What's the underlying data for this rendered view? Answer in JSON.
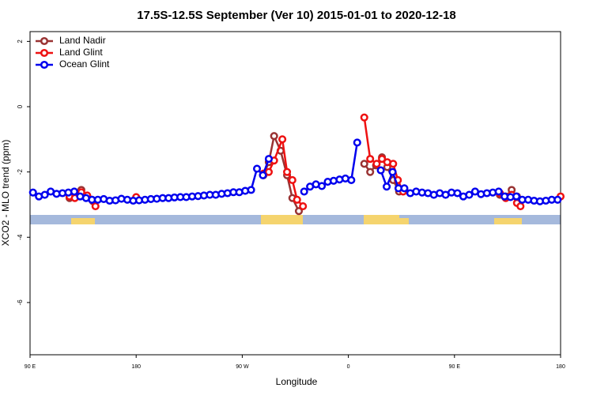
{
  "chart_data": {
    "type": "line",
    "title": "17.5S-12.5S September (Ver 10)   2015-01-01 to 2020-12-18",
    "x_label": "Longitude",
    "y_label": "XCO2 - MLO trend (ppm)",
    "xlim": [
      90,
      540
    ],
    "xticks": [
      {
        "value": 90,
        "label": "90 E"
      },
      {
        "value": 180,
        "label": "180"
      },
      {
        "value": 270,
        "label": "90 W"
      },
      {
        "value": 360,
        "label": "0"
      },
      {
        "value": 450,
        "label": "90 E"
      },
      {
        "value": 540,
        "label": "180"
      }
    ],
    "ylim": [
      -7.6,
      2.3
    ],
    "yticks": [
      2,
      0,
      -2,
      -4,
      -6
    ],
    "legend": "top-left",
    "series": [
      {
        "name": "Land Nadir",
        "color": "#993333",
        "x": [
          123.5,
          128,
          133.5,
          138.5,
          143.5,
          200,
          288,
          292.5,
          297,
          302.5,
          308,
          312.5,
          318,
          340,
          373.5,
          378.5,
          383.5,
          388.5,
          393,
          398,
          403,
          407.5,
          450,
          488.5,
          493.5,
          498.5,
          503
        ],
        "values": [
          -2.8,
          -2.75,
          -2.55,
          -2.75,
          -2.9,
          null,
          -2.1,
          -1.7,
          -0.9,
          -1.35,
          -2.1,
          -2.8,
          -3.2,
          null,
          -1.75,
          -2.0,
          -1.8,
          -1.55,
          -1.85,
          -2.25,
          -2.6,
          -2.55,
          null,
          -2.7,
          -2.75,
          -2.55,
          -2.75
        ]
      },
      {
        "name": "Land Glint",
        "color": "#ee1111",
        "x": [
          123.5,
          128,
          133.5,
          138.5,
          142.5,
          145.5,
          160,
          180,
          200,
          288,
          292.5,
          297,
          304,
          308,
          312.5,
          316.5,
          321.5,
          340,
          373.5,
          378.5,
          384,
          388.5,
          393,
          398,
          402,
          406.5,
          450,
          488.5,
          493.5,
          498.5,
          503,
          506,
          520,
          540
        ],
        "values": [
          -2.75,
          -2.8,
          -2.62,
          -2.72,
          -2.85,
          -3.05,
          null,
          -2.77,
          null,
          -2.05,
          -2.0,
          -1.65,
          -1.0,
          -2.0,
          -2.25,
          -2.85,
          -3.05,
          null,
          -0.33,
          -1.6,
          -1.75,
          -1.6,
          -1.7,
          -1.75,
          -2.25,
          -2.6,
          null,
          -2.65,
          -2.8,
          -2.7,
          -2.95,
          -3.05,
          null,
          -2.75
        ]
      },
      {
        "name": "Ocean Glint",
        "color": "#0000ee",
        "x": [
          92.5,
          97.5,
          102.5,
          107.5,
          112.5,
          117.5,
          122.5,
          127.5,
          132.5,
          137.5,
          142.5,
          147.5,
          152.5,
          157.5,
          162.5,
          167.5,
          172.5,
          177.5,
          182.5,
          187.5,
          192.5,
          197.5,
          202.5,
          207.5,
          212.5,
          217.5,
          222.5,
          227.5,
          232.5,
          237.5,
          242.5,
          247.5,
          252.5,
          257.5,
          262.5,
          267.5,
          272.5,
          277.5,
          282.5,
          287.5,
          292.5,
          307.5,
          322.5,
          327.5,
          332.5,
          337.5,
          342.5,
          347.5,
          352.5,
          357.5,
          362.5,
          367.5,
          377.5,
          387.5,
          392.5,
          397.5,
          402.5,
          407.5,
          412.5,
          417.5,
          422.5,
          427.5,
          432.5,
          437.5,
          442.5,
          447.5,
          452.5,
          457.5,
          462.5,
          467.5,
          472.5,
          477.5,
          482.5,
          487.5,
          492.5,
          497.5,
          502.5,
          507.5,
          512.5,
          517.5,
          522.5,
          527.5,
          532.5,
          537.5
        ],
        "values": [
          -2.63,
          -2.75,
          -2.7,
          -2.6,
          -2.67,
          -2.65,
          -2.63,
          -2.6,
          -2.75,
          -2.8,
          -2.85,
          -2.85,
          -2.83,
          -2.88,
          -2.87,
          -2.82,
          -2.85,
          -2.88,
          -2.87,
          -2.85,
          -2.83,
          -2.82,
          -2.8,
          -2.8,
          -2.78,
          -2.77,
          -2.77,
          -2.75,
          -2.74,
          -2.72,
          -2.7,
          -2.7,
          -2.67,
          -2.65,
          -2.62,
          -2.62,
          -2.58,
          -2.55,
          -1.9,
          -2.1,
          -1.6,
          null,
          -2.6,
          -2.45,
          -2.38,
          -2.43,
          -2.3,
          -2.27,
          -2.23,
          -2.2,
          -2.25,
          -1.1,
          null,
          -1.95,
          -2.45,
          -2.0,
          -2.5,
          -2.5,
          -2.65,
          -2.6,
          -2.63,
          -2.65,
          -2.7,
          -2.65,
          -2.7,
          -2.63,
          -2.65,
          -2.75,
          -2.7,
          -2.6,
          -2.68,
          -2.65,
          -2.63,
          -2.6,
          -2.75,
          -2.77,
          -2.75,
          -2.85,
          -2.85,
          -2.88,
          -2.9,
          -2.88,
          -2.85,
          -2.85
        ]
      }
    ]
  }
}
